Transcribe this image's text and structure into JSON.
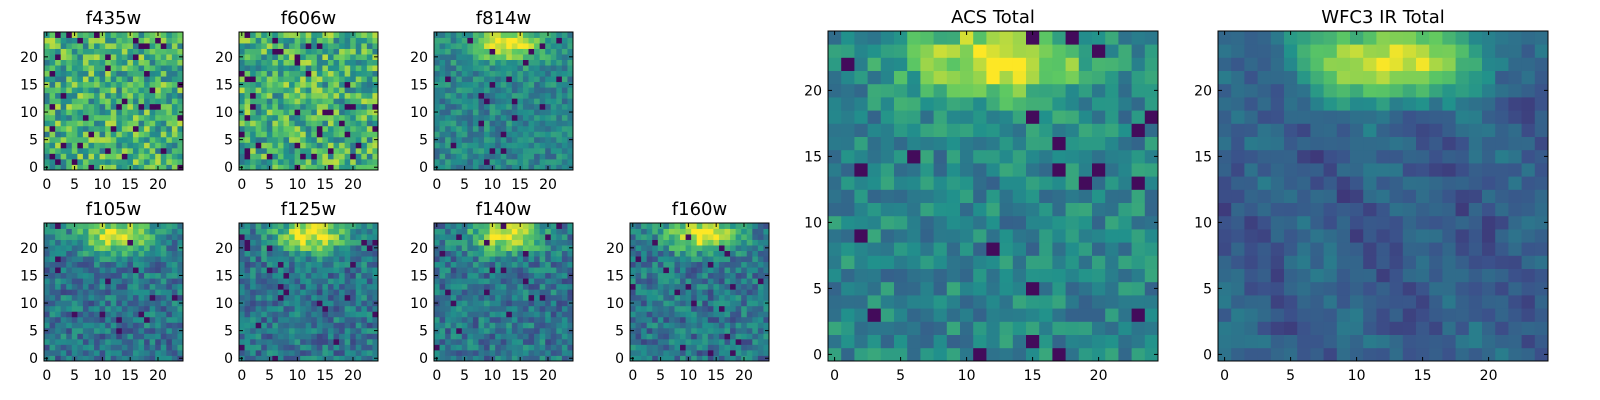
{
  "figure": {
    "background": "#ffffff",
    "colormap": "viridis",
    "colormap_stops": [
      "#440154",
      "#3b528b",
      "#21918c",
      "#5ec962",
      "#fde725"
    ]
  },
  "chart_data": [
    {
      "type": "heatmap",
      "title": "f435w",
      "xlim": [
        0,
        24
      ],
      "ylim": [
        0,
        24
      ],
      "xticks": [
        0,
        5,
        10,
        15,
        20
      ],
      "yticks": [
        0,
        5,
        10,
        15,
        20
      ],
      "pattern": "noise",
      "grid": false
    },
    {
      "type": "heatmap",
      "title": "f606w",
      "xlim": [
        0,
        24
      ],
      "ylim": [
        0,
        24
      ],
      "xticks": [
        0,
        5,
        10,
        15,
        20
      ],
      "yticks": [
        0,
        5,
        10,
        15,
        20
      ],
      "pattern": "noise",
      "grid": false
    },
    {
      "type": "heatmap",
      "title": "f814w",
      "xlim": [
        0,
        24
      ],
      "ylim": [
        0,
        24
      ],
      "xticks": [
        0,
        5,
        10,
        15,
        20
      ],
      "yticks": [
        0,
        5,
        10,
        15,
        20
      ],
      "pattern": "top-blob-noisy",
      "grid": false
    },
    {
      "type": "heatmap",
      "title": "f105w",
      "xlim": [
        0,
        24
      ],
      "ylim": [
        0,
        24
      ],
      "xticks": [
        0,
        5,
        10,
        15,
        20
      ],
      "yticks": [
        0,
        5,
        10,
        15,
        20
      ],
      "pattern": "top-blob",
      "grid": false
    },
    {
      "type": "heatmap",
      "title": "f125w",
      "xlim": [
        0,
        24
      ],
      "ylim": [
        0,
        24
      ],
      "xticks": [
        0,
        5,
        10,
        15,
        20
      ],
      "yticks": [
        0,
        5,
        10,
        15,
        20
      ],
      "pattern": "top-blob",
      "grid": false
    },
    {
      "type": "heatmap",
      "title": "f140w",
      "xlim": [
        0,
        24
      ],
      "ylim": [
        0,
        24
      ],
      "xticks": [
        0,
        5,
        10,
        15,
        20
      ],
      "yticks": [
        0,
        5,
        10,
        15,
        20
      ],
      "pattern": "top-blob",
      "grid": false
    },
    {
      "type": "heatmap",
      "title": "f160w",
      "xlim": [
        0,
        24
      ],
      "ylim": [
        0,
        24
      ],
      "xticks": [
        0,
        5,
        10,
        15,
        20
      ],
      "yticks": [
        0,
        5,
        10,
        15,
        20
      ],
      "pattern": "top-blob",
      "grid": false
    },
    {
      "type": "heatmap",
      "title": "ACS Total",
      "xlim": [
        0,
        24
      ],
      "ylim": [
        0,
        24
      ],
      "xticks": [
        0,
        5,
        10,
        15,
        20
      ],
      "yticks": [
        0,
        5,
        10,
        15,
        20
      ],
      "pattern": "top-blob-noisy",
      "grid": false
    },
    {
      "type": "heatmap",
      "title": "WFC3 IR Total",
      "xlim": [
        0,
        24
      ],
      "ylim": [
        0,
        24
      ],
      "xticks": [
        0,
        5,
        10,
        15,
        20
      ],
      "yticks": [
        0,
        5,
        10,
        15,
        20
      ],
      "pattern": "top-blob-smooth",
      "grid": false
    }
  ]
}
